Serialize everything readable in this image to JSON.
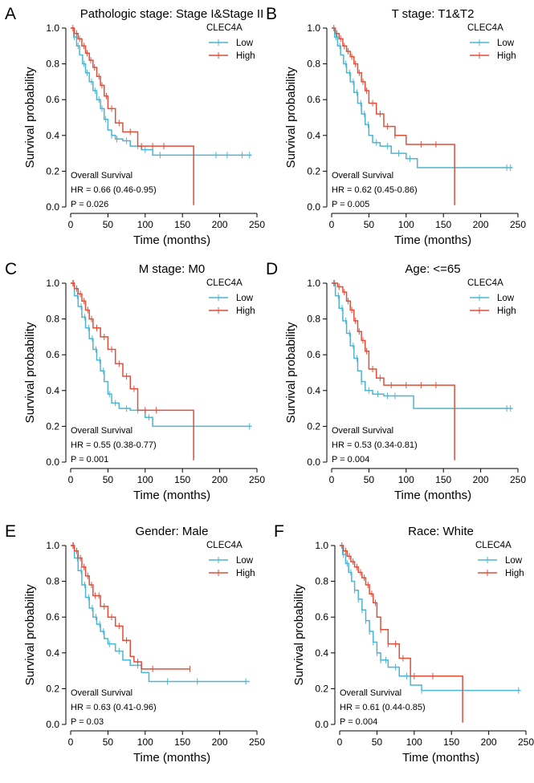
{
  "colors": {
    "low": "#4BB6D1",
    "high": "#E14E3A"
  },
  "chart_data": [
    {
      "type": "line",
      "panel_label": "A",
      "title": "Pathologic stage: Stage I&Stage II",
      "xlabel": "Time (months)",
      "ylabel": "Survival probability",
      "xticks": [
        "0",
        "50",
        "100",
        "150",
        "200",
        "250"
      ],
      "yticks": [
        "0.0",
        "0.2",
        "0.4",
        "0.6",
        "0.8",
        "1.0"
      ],
      "xlim": [
        0,
        250
      ],
      "ylim": [
        0,
        1
      ],
      "legend_title": "CLEC4A",
      "legend_placement": "top-right",
      "stats": [
        "Overall Survival",
        "HR = 0.66 (0.46-0.95)",
        "P = 0.026"
      ],
      "series": [
        {
          "name": "Low",
          "color_key": "low",
          "x": [
            0,
            4,
            8,
            12,
            16,
            20,
            25,
            30,
            35,
            40,
            45,
            50,
            55,
            60,
            70,
            80,
            95,
            110,
            243
          ],
          "y": [
            1.0,
            0.95,
            0.9,
            0.85,
            0.8,
            0.75,
            0.7,
            0.65,
            0.6,
            0.55,
            0.49,
            0.43,
            0.4,
            0.38,
            0.37,
            0.34,
            0.32,
            0.29,
            0.29
          ],
          "censor": [
            5,
            10,
            18,
            22,
            28,
            33,
            38,
            42,
            47,
            55,
            62,
            75,
            90,
            100,
            120,
            195,
            210,
            230,
            240
          ]
        },
        {
          "name": "High",
          "color_key": "high",
          "x": [
            0,
            5,
            10,
            15,
            20,
            25,
            30,
            35,
            40,
            45,
            50,
            60,
            70,
            90,
            105,
            165
          ],
          "y": [
            1.0,
            0.97,
            0.94,
            0.9,
            0.86,
            0.82,
            0.78,
            0.73,
            0.68,
            0.62,
            0.55,
            0.47,
            0.42,
            0.34,
            0.34,
            0.01
          ],
          "censor": [
            3,
            8,
            12,
            18,
            22,
            27,
            32,
            38,
            42,
            48,
            55,
            65,
            80,
            95,
            110,
            125
          ]
        }
      ]
    },
    {
      "type": "line",
      "panel_label": "B",
      "title": "T stage: T1&T2",
      "xlabel": "Time (months)",
      "ylabel": "Survival probability",
      "xticks": [
        "0",
        "50",
        "100",
        "150",
        "200",
        "250"
      ],
      "yticks": [
        "0.0",
        "0.2",
        "0.4",
        "0.6",
        "0.8",
        "1.0"
      ],
      "xlim": [
        0,
        250
      ],
      "ylim": [
        0,
        1
      ],
      "legend_title": "CLEC4A",
      "legend_placement": "top-right",
      "stats": [
        "Overall Survival",
        "HR = 0.62 (0.45-0.86)",
        "P = 0.005"
      ],
      "series": [
        {
          "name": "Low",
          "color_key": "low",
          "x": [
            0,
            4,
            8,
            12,
            16,
            20,
            25,
            30,
            35,
            40,
            45,
            50,
            55,
            65,
            80,
            100,
            115,
            243
          ],
          "y": [
            1.0,
            0.95,
            0.9,
            0.85,
            0.8,
            0.75,
            0.7,
            0.64,
            0.58,
            0.52,
            0.46,
            0.4,
            0.36,
            0.34,
            0.3,
            0.27,
            0.22,
            0.22
          ],
          "censor": [
            6,
            11,
            19,
            24,
            29,
            34,
            39,
            44,
            49,
            60,
            75,
            90,
            105,
            165,
            235,
            240
          ]
        },
        {
          "name": "High",
          "color_key": "high",
          "x": [
            0,
            5,
            10,
            15,
            20,
            25,
            30,
            35,
            40,
            45,
            50,
            60,
            70,
            85,
            100,
            165
          ],
          "y": [
            1.0,
            0.97,
            0.94,
            0.9,
            0.87,
            0.84,
            0.8,
            0.75,
            0.7,
            0.65,
            0.58,
            0.52,
            0.45,
            0.4,
            0.35,
            0.01
          ],
          "censor": [
            3,
            7,
            12,
            17,
            22,
            27,
            32,
            37,
            42,
            47,
            55,
            65,
            75,
            85,
            120,
            140
          ]
        }
      ]
    },
    {
      "type": "line",
      "panel_label": "C",
      "title": "M stage: M0",
      "xlabel": "Time (months)",
      "ylabel": "Survival probability",
      "xticks": [
        "0",
        "50",
        "100",
        "150",
        "200",
        "250"
      ],
      "yticks": [
        "0.0",
        "0.2",
        "0.4",
        "0.6",
        "0.8",
        "1.0"
      ],
      "xlim": [
        0,
        250
      ],
      "ylim": [
        0,
        1
      ],
      "legend_title": "CLEC4A",
      "legend_placement": "top-right",
      "stats": [
        "Overall Survival",
        "HR = 0.55 (0.38-0.77)",
        "P = 0.001"
      ],
      "series": [
        {
          "name": "Low",
          "color_key": "low",
          "x": [
            0,
            5,
            10,
            15,
            20,
            25,
            30,
            35,
            40,
            45,
            50,
            55,
            65,
            80,
            100,
            110,
            243
          ],
          "y": [
            1.0,
            0.93,
            0.87,
            0.81,
            0.75,
            0.69,
            0.63,
            0.57,
            0.51,
            0.45,
            0.38,
            0.33,
            0.3,
            0.29,
            0.25,
            0.2,
            0.2
          ],
          "censor": [
            4,
            9,
            14,
            19,
            24,
            29,
            34,
            39,
            44,
            52,
            60,
            75,
            90,
            105,
            240
          ]
        },
        {
          "name": "High",
          "color_key": "high",
          "x": [
            0,
            5,
            10,
            15,
            20,
            25,
            30,
            40,
            50,
            60,
            70,
            80,
            90,
            110,
            165
          ],
          "y": [
            1.0,
            0.97,
            0.94,
            0.9,
            0.85,
            0.8,
            0.75,
            0.7,
            0.63,
            0.55,
            0.48,
            0.41,
            0.29,
            0.29,
            0.01
          ],
          "censor": [
            3,
            8,
            13,
            18,
            23,
            28,
            35,
            45,
            55,
            65,
            75,
            85,
            100,
            115
          ]
        }
      ]
    },
    {
      "type": "line",
      "panel_label": "D",
      "title": "Age: <=65",
      "xlabel": "Time (months)",
      "ylabel": "Survival probability",
      "xticks": [
        "0",
        "50",
        "100",
        "150",
        "200",
        "250"
      ],
      "yticks": [
        "0.0",
        "0.2",
        "0.4",
        "0.6",
        "0.8",
        "1.0"
      ],
      "xlim": [
        0,
        250
      ],
      "ylim": [
        0,
        1
      ],
      "legend_title": "CLEC4A",
      "legend_placement": "top-right",
      "stats": [
        "Overall Survival",
        "HR = 0.53 (0.34-0.81)",
        "P = 0.004"
      ],
      "series": [
        {
          "name": "Low",
          "color_key": "low",
          "x": [
            0,
            5,
            10,
            15,
            20,
            25,
            30,
            35,
            40,
            45,
            55,
            70,
            90,
            110,
            243
          ],
          "y": [
            1.0,
            0.93,
            0.86,
            0.79,
            0.72,
            0.65,
            0.58,
            0.51,
            0.45,
            0.4,
            0.38,
            0.37,
            0.37,
            0.3,
            0.3
          ],
          "censor": [
            4,
            9,
            14,
            19,
            24,
            29,
            34,
            40,
            50,
            62,
            75,
            85,
            235,
            240
          ]
        },
        {
          "name": "High",
          "color_key": "high",
          "x": [
            0,
            8,
            15,
            20,
            25,
            30,
            35,
            40,
            45,
            50,
            60,
            70,
            165
          ],
          "y": [
            1.0,
            0.98,
            0.95,
            0.9,
            0.85,
            0.79,
            0.73,
            0.68,
            0.62,
            0.52,
            0.47,
            0.43,
            0.01
          ],
          "censor": [
            3,
            10,
            17,
            22,
            27,
            32,
            37,
            42,
            47,
            55,
            65,
            80,
            100,
            120,
            140
          ]
        }
      ]
    },
    {
      "type": "line",
      "panel_label": "E",
      "title": "Gender: Male",
      "xlabel": "Time (months)",
      "ylabel": "Survival probability",
      "xticks": [
        "0",
        "50",
        "100",
        "150",
        "200",
        "250"
      ],
      "yticks": [
        "0.0",
        "0.2",
        "0.4",
        "0.6",
        "0.8",
        "1.0"
      ],
      "xlim": [
        0,
        250
      ],
      "ylim": [
        0,
        1
      ],
      "legend_title": "CLEC4A",
      "legend_placement": "top-right",
      "stats": [
        "Overall Survival",
        "HR = 0.63 (0.41-0.96)",
        "P = 0.03"
      ],
      "series": [
        {
          "name": "Low",
          "color_key": "low",
          "x": [
            0,
            5,
            10,
            15,
            20,
            25,
            30,
            35,
            40,
            45,
            50,
            60,
            70,
            80,
            95,
            105,
            240
          ],
          "y": [
            1.0,
            0.93,
            0.86,
            0.78,
            0.71,
            0.65,
            0.6,
            0.56,
            0.52,
            0.48,
            0.45,
            0.41,
            0.36,
            0.33,
            0.29,
            0.24,
            0.24
          ],
          "censor": [
            4,
            9,
            14,
            19,
            24,
            29,
            34,
            39,
            44,
            52,
            65,
            90,
            130,
            170,
            235
          ]
        },
        {
          "name": "High",
          "color_key": "high",
          "x": [
            0,
            5,
            10,
            15,
            20,
            25,
            30,
            40,
            50,
            60,
            70,
            80,
            85,
            95,
            160
          ],
          "y": [
            1.0,
            0.97,
            0.93,
            0.88,
            0.83,
            0.78,
            0.72,
            0.66,
            0.6,
            0.55,
            0.47,
            0.38,
            0.35,
            0.31,
            0.31
          ],
          "censor": [
            3,
            8,
            13,
            18,
            23,
            28,
            33,
            38,
            45,
            55,
            65,
            75,
            90,
            110,
            160
          ]
        }
      ]
    },
    {
      "type": "line",
      "panel_label": "F",
      "title": "Race: White",
      "xlabel": "Time (months)",
      "ylabel": "Survival probability",
      "xticks": [
        "0",
        "50",
        "100",
        "150",
        "200",
        "250"
      ],
      "yticks": [
        "0.0",
        "0.2",
        "0.4",
        "0.6",
        "0.8",
        "1.0"
      ],
      "xlim": [
        0,
        250
      ],
      "ylim": [
        0,
        1
      ],
      "legend_title": "CLEC4A",
      "legend_placement": "top-right",
      "stats": [
        "Overall Survival",
        "HR = 0.61 (0.44-0.85)",
        "P = 0.004"
      ],
      "series": [
        {
          "name": "Low",
          "color_key": "low",
          "x": [
            0,
            4,
            8,
            12,
            16,
            20,
            25,
            30,
            35,
            40,
            45,
            50,
            55,
            65,
            80,
            95,
            110,
            243
          ],
          "y": [
            1.0,
            0.95,
            0.9,
            0.85,
            0.8,
            0.75,
            0.7,
            0.64,
            0.58,
            0.52,
            0.46,
            0.4,
            0.36,
            0.32,
            0.27,
            0.22,
            0.19,
            0.19
          ],
          "censor": [
            5,
            10,
            15,
            20,
            25,
            30,
            35,
            40,
            45,
            50,
            55,
            62,
            75,
            90,
            110,
            240
          ]
        },
        {
          "name": "High",
          "color_key": "high",
          "x": [
            0,
            5,
            10,
            15,
            20,
            25,
            30,
            35,
            40,
            45,
            50,
            55,
            65,
            80,
            95,
            165
          ],
          "y": [
            1.0,
            0.97,
            0.94,
            0.91,
            0.88,
            0.85,
            0.82,
            0.78,
            0.73,
            0.68,
            0.6,
            0.53,
            0.45,
            0.37,
            0.27,
            0.01
          ],
          "censor": [
            3,
            8,
            13,
            18,
            23,
            28,
            33,
            38,
            43,
            48,
            55,
            65,
            75,
            85,
            100,
            125
          ]
        }
      ]
    }
  ]
}
